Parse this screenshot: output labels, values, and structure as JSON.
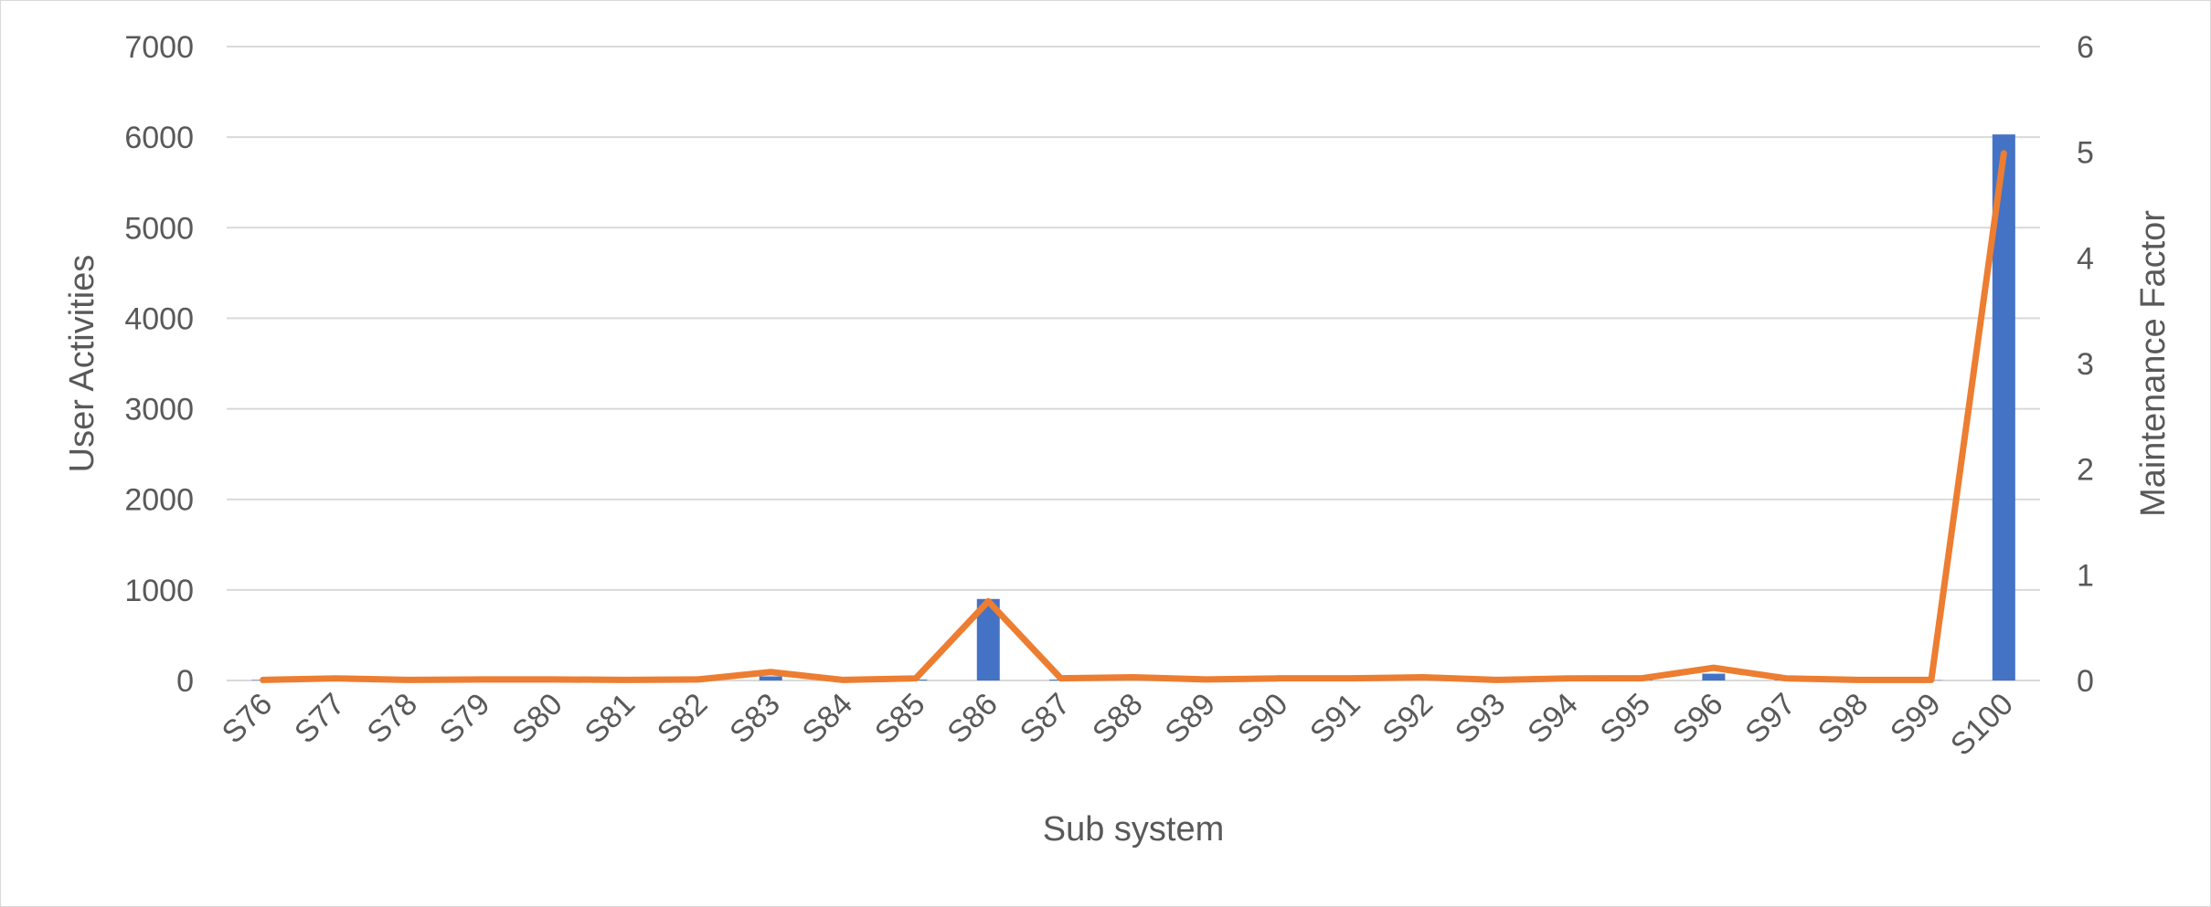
{
  "chart_data": {
    "type": "bar",
    "title": "",
    "xlabel": "Sub system",
    "ylabel": "User Activities",
    "y2label": "Maintenance Factor",
    "categories": [
      "S76",
      "S77",
      "S78",
      "S79",
      "S80",
      "S81",
      "S82",
      "S83",
      "S84",
      "S85",
      "S86",
      "S87",
      "S88",
      "S89",
      "S90",
      "S91",
      "S92",
      "S93",
      "S94",
      "S95",
      "S96",
      "S97",
      "S98",
      "S99",
      "S100"
    ],
    "ylim": [
      0,
      7000
    ],
    "yticks": [
      "0",
      "1000",
      "2000",
      "3000",
      "4000",
      "5000",
      "6000",
      "7000"
    ],
    "y2lim": [
      0,
      6
    ],
    "y2ticks": [
      "0",
      "1",
      "2",
      "3",
      "4",
      "5",
      "6"
    ],
    "grid": true,
    "series": [
      {
        "axis": "left",
        "kind": "bar",
        "color": "#4472c4",
        "values": [
          5,
          10,
          3,
          5,
          5,
          3,
          5,
          45,
          3,
          10,
          900,
          10,
          12,
          5,
          8,
          8,
          12,
          3,
          10,
          10,
          75,
          10,
          3,
          3,
          6030
        ]
      },
      {
        "axis": "right",
        "kind": "line",
        "color": "#ed7d31",
        "values": [
          0.005,
          0.02,
          0.005,
          0.01,
          0.01,
          0.005,
          0.01,
          0.08,
          0.005,
          0.02,
          0.75,
          0.02,
          0.03,
          0.01,
          0.02,
          0.02,
          0.03,
          0.005,
          0.02,
          0.02,
          0.12,
          0.02,
          0.005,
          0.005,
          4.99
        ]
      }
    ]
  }
}
